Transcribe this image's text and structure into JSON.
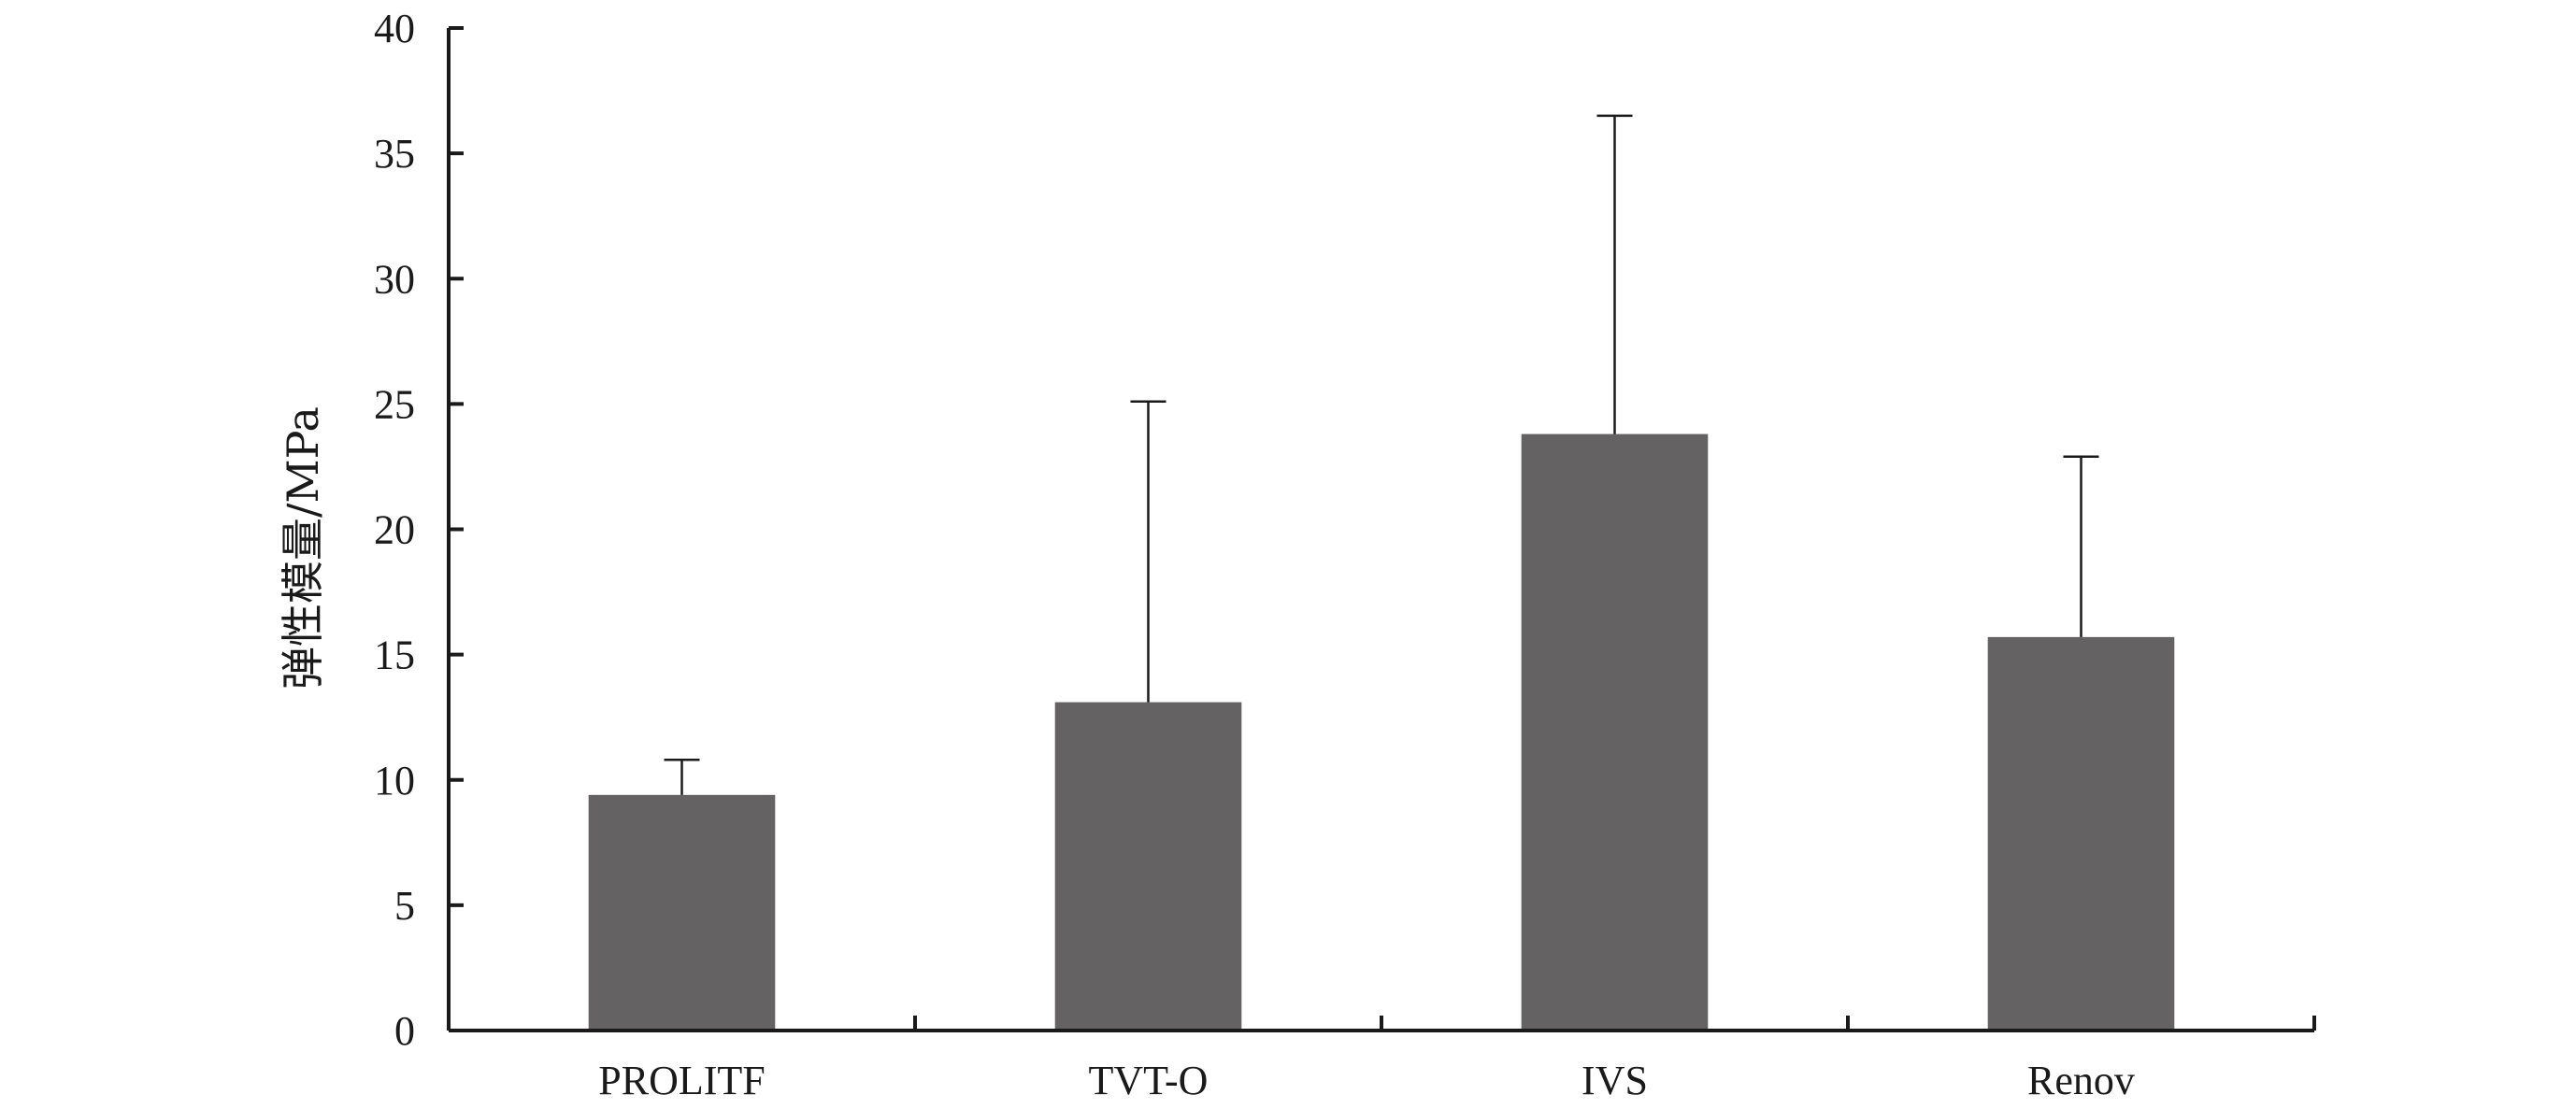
{
  "chart_data": {
    "type": "bar",
    "title": "",
    "xlabel": "",
    "ylabel": "弹性模量/MPa",
    "ylim": [
      0,
      40
    ],
    "yticks": [
      0,
      5,
      10,
      15,
      20,
      25,
      30,
      35,
      40
    ],
    "categories": [
      "PROLITF",
      "TVT-O",
      "IVS",
      "Renov"
    ],
    "values": [
      9.4,
      13.1,
      23.8,
      15.7
    ],
    "error_upper": [
      10.8,
      25.1,
      36.5,
      22.9
    ],
    "bar_color": "#646263",
    "grid": false,
    "legend": "none"
  }
}
